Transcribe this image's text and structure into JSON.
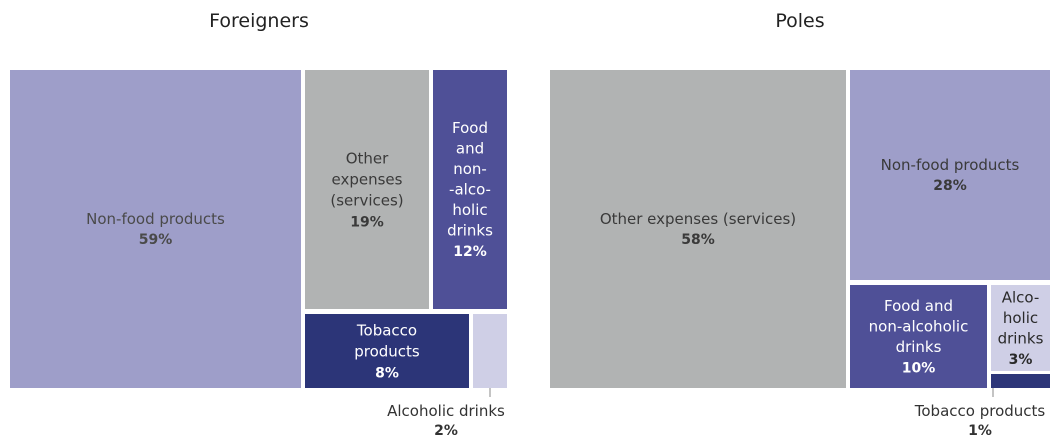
{
  "chart_data": [
    {
      "type": "treemap",
      "title": "Foreigners",
      "items": [
        {
          "label": "Non-food products",
          "value": 59,
          "value_label": "59%",
          "color": "#9e9ec9"
        },
        {
          "label": "Other expenses (services)",
          "value": 19,
          "value_label": "19%",
          "color": "#b1b3b3"
        },
        {
          "label": "Food and non-alcoholic drinks",
          "value": 12,
          "value_label": "12%",
          "color": "#4f5097"
        },
        {
          "label": "Tobacco products",
          "value": 8,
          "value_label": "8%",
          "color": "#2c3578"
        },
        {
          "label": "Alcoholic drinks",
          "value": 2,
          "value_label": "2%",
          "color": "#cfcfe6"
        }
      ]
    },
    {
      "type": "treemap",
      "title": "Poles",
      "items": [
        {
          "label": "Other expenses (services)",
          "value": 58,
          "value_label": "58%",
          "color": "#b1b3b3"
        },
        {
          "label": "Non-food products",
          "value": 28,
          "value_label": "28%",
          "color": "#9e9ec9"
        },
        {
          "label": "Food and non-alcoholic drinks",
          "value": 10,
          "value_label": "10%",
          "color": "#4f5097"
        },
        {
          "label": "Alcoholic drinks",
          "value": 3,
          "value_label": "3%",
          "color": "#cfcfe6"
        },
        {
          "label": "Tobacco products",
          "value": 1,
          "value_label": "1%",
          "color": "#2c3578"
        }
      ]
    }
  ]
}
